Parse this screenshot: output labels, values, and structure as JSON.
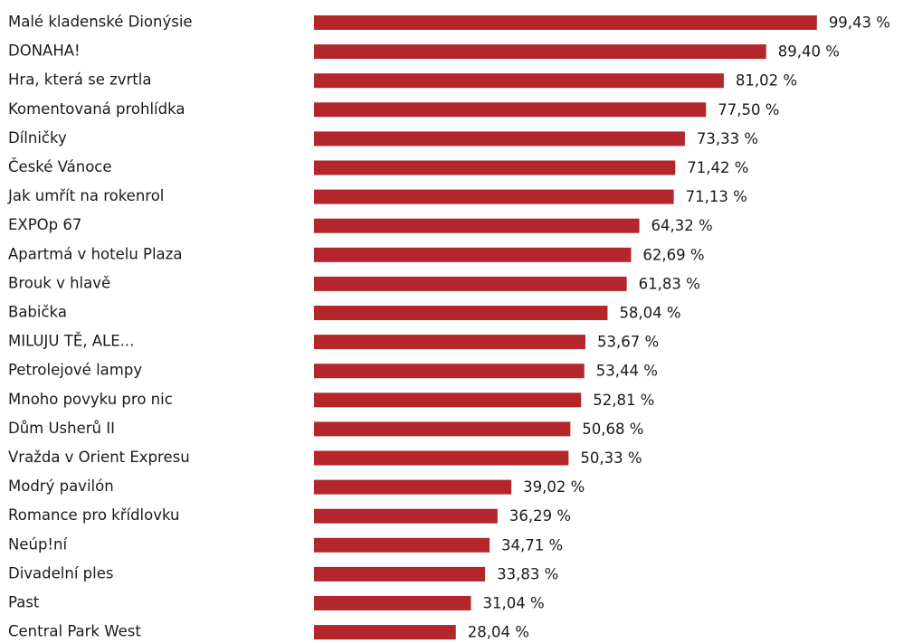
{
  "chart_data": {
    "type": "hbar",
    "color": "#b3262b",
    "categories": [
      "Malé kladenské Dionýsie",
      "DONAHA!",
      "Hra, která se zvrtla",
      "Komentovaná prohlídka",
      "Dílničky",
      "České Vánoce",
      "Jak umřít na rokenrol",
      "EXPOp 67",
      "Apartmá v hotelu Plaza",
      "Brouk v hlavě",
      "Babička",
      "MILUJU TĚ, ALE...",
      "Petrolejové lampy",
      "Mnoho povyku pro nic",
      "Dům Usherů II",
      "Vražda v Orient Expresu",
      "Modrý pavilón",
      "Romance pro křídlovku",
      "Neúp!ní",
      "Divadelní ples",
      "Past",
      "Central Park West"
    ],
    "values": [
      99.43,
      89.4,
      81.02,
      77.5,
      73.33,
      71.42,
      71.13,
      64.32,
      62.69,
      61.83,
      58.04,
      53.67,
      53.44,
      52.81,
      50.68,
      50.33,
      39.02,
      36.29,
      34.71,
      33.83,
      31.04,
      28.04
    ],
    "value_labels": [
      "99,43 %",
      "89,40 %",
      "81,02 %",
      "77,50 %",
      "73,33 %",
      "71,42 %",
      "71,13 %",
      "64,32 %",
      "62,69 %",
      "61,83 %",
      "58,04 %",
      "53,67 %",
      "53,44 %",
      "52,81 %",
      "50,68 %",
      "50,33 %",
      "39,02 %",
      "36,29 %",
      "34,71 %",
      "33,83 %",
      "31,04 %",
      "28,04 %"
    ]
  }
}
